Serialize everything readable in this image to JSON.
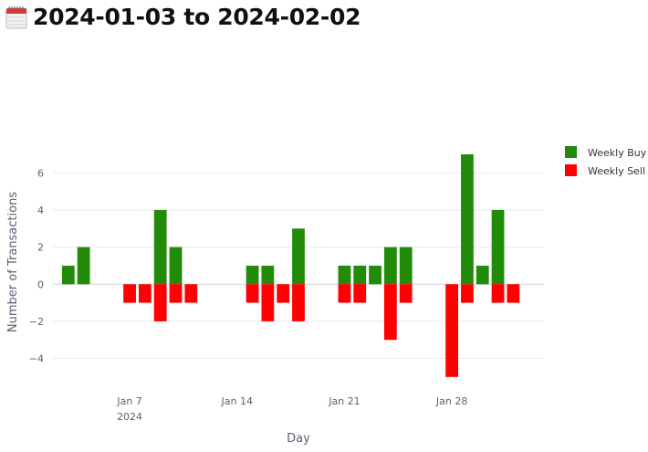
{
  "header": {
    "title": "2024-01-03 to 2024-02-02",
    "icon": "calendar-icon"
  },
  "chart_data": {
    "type": "bar",
    "title": "",
    "xlabel": "Day",
    "ylabel": "Number of Transactions",
    "x_tick_labels": [
      {
        "date": "2024-01-07",
        "label": "Jan 7",
        "sublabel": "2024"
      },
      {
        "date": "2024-01-14",
        "label": "Jan 14",
        "sublabel": ""
      },
      {
        "date": "2024-01-21",
        "label": "Jan 21",
        "sublabel": ""
      },
      {
        "date": "2024-01-28",
        "label": "Jan 28",
        "sublabel": ""
      }
    ],
    "y_ticks": [
      -4,
      -2,
      0,
      2,
      4,
      6
    ],
    "y_tick_labels": [
      "−4",
      "−2",
      "0",
      "2",
      "4",
      "6"
    ],
    "ylim": [
      -5.5,
      7.1
    ],
    "xlim": [
      "2024-01-02",
      "2024-02-03"
    ],
    "grid": true,
    "legend_position": "top-right",
    "series": [
      {
        "name": "Weekly Buy",
        "color": "#228b09",
        "points": [
          {
            "date": "2024-01-03",
            "value": 1
          },
          {
            "date": "2024-01-04",
            "value": 2
          },
          {
            "date": "2024-01-09",
            "value": 4
          },
          {
            "date": "2024-01-10",
            "value": 2
          },
          {
            "date": "2024-01-15",
            "value": 1
          },
          {
            "date": "2024-01-16",
            "value": 1
          },
          {
            "date": "2024-01-18",
            "value": 3
          },
          {
            "date": "2024-01-21",
            "value": 1
          },
          {
            "date": "2024-01-22",
            "value": 1
          },
          {
            "date": "2024-01-23",
            "value": 1
          },
          {
            "date": "2024-01-24",
            "value": 2
          },
          {
            "date": "2024-01-25",
            "value": 2
          },
          {
            "date": "2024-01-29",
            "value": 7
          },
          {
            "date": "2024-01-30",
            "value": 1
          },
          {
            "date": "2024-01-31",
            "value": 4
          }
        ]
      },
      {
        "name": "Weekly Sell",
        "color": "#ff0000",
        "points": [
          {
            "date": "2024-01-07",
            "value": -1
          },
          {
            "date": "2024-01-08",
            "value": -1
          },
          {
            "date": "2024-01-09",
            "value": -2
          },
          {
            "date": "2024-01-10",
            "value": -1
          },
          {
            "date": "2024-01-11",
            "value": -1
          },
          {
            "date": "2024-01-15",
            "value": -1
          },
          {
            "date": "2024-01-16",
            "value": -2
          },
          {
            "date": "2024-01-17",
            "value": -1
          },
          {
            "date": "2024-01-18",
            "value": -2
          },
          {
            "date": "2024-01-21",
            "value": -1
          },
          {
            "date": "2024-01-22",
            "value": -1
          },
          {
            "date": "2024-01-24",
            "value": -3
          },
          {
            "date": "2024-01-25",
            "value": -1
          },
          {
            "date": "2024-01-28",
            "value": -5
          },
          {
            "date": "2024-01-29",
            "value": -1
          },
          {
            "date": "2024-01-31",
            "value": -1
          },
          {
            "date": "2024-02-01",
            "value": -1
          }
        ]
      }
    ]
  }
}
